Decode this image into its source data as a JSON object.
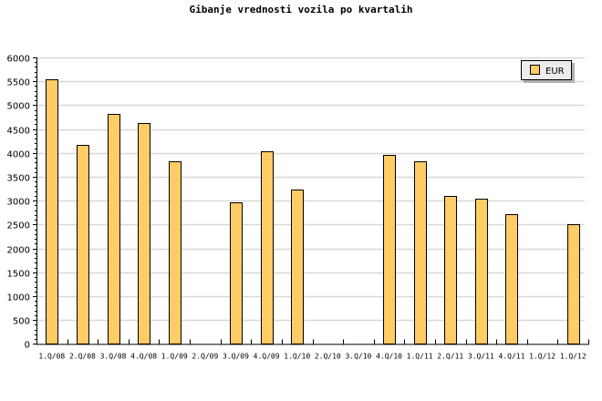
{
  "chart_data": {
    "type": "bar",
    "title": "Gibanje vrednosti vozila po kvartalih",
    "xlabel": "",
    "ylabel": "",
    "ylim": [
      0,
      6000
    ],
    "yticks": [
      0,
      500,
      1000,
      1500,
      2000,
      2500,
      3000,
      3500,
      4000,
      4500,
      5000,
      5500,
      6000
    ],
    "grid": true,
    "legend_position": "top-right",
    "categories": [
      "1.Q/08",
      "2.Q/08",
      "3.Q/08",
      "4.Q/08",
      "1.Q/09",
      "2.Q/09",
      "3.Q/09",
      "4.Q/09",
      "1.Q/10",
      "2.Q/10",
      "3.Q/10",
      "4.Q/10",
      "1.Q/11",
      "2.Q/11",
      "3.Q/11",
      "4.Q/11",
      "1.Q/12",
      "1.Q/12"
    ],
    "series": [
      {
        "name": "EUR",
        "color": "#ffcc66",
        "values": [
          5540,
          4160,
          4810,
          4620,
          3820,
          null,
          2960,
          4030,
          3230,
          null,
          null,
          3950,
          3820,
          3090,
          3040,
          2710,
          null,
          2500
        ]
      }
    ]
  }
}
